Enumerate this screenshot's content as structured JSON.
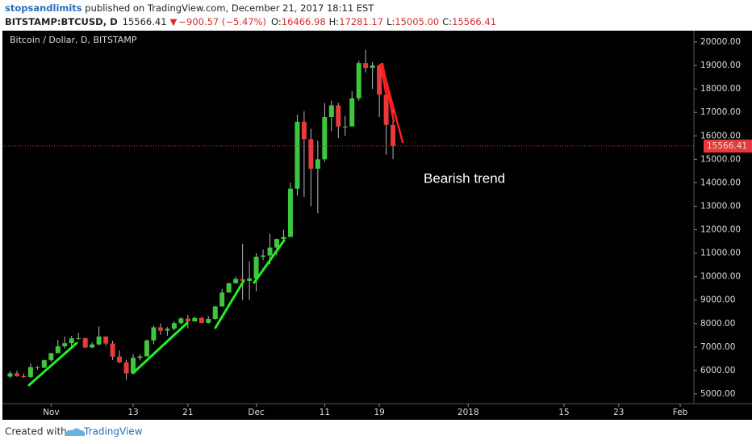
{
  "header": {
    "author": "stopsandlimits",
    "published": " published on TradingView.com, December 21, 2017 18:11 EST",
    "symbol": "BITSTAMP:BTCUSD, D",
    "last": "15566.41",
    "arrow": "▼",
    "change": "−900.57 (−5.47%)",
    "ohlc": [
      {
        "label": "O:",
        "value": "16466.98"
      },
      {
        "label": "H:",
        "value": "17281.17"
      },
      {
        "label": "L:",
        "value": "15005.00"
      },
      {
        "label": "C:",
        "value": "15566.41"
      }
    ]
  },
  "chart_data": {
    "type": "candlestick",
    "title": "Bitcoin / Dollar, D, BITSTAMP",
    "annotation": "Bearish trend",
    "up_color": "#3ec63e",
    "down_color": "#e83a3a",
    "wick_color": "#b8b8b8",
    "last_color": "#e83a3a",
    "x": [
      "2017-10-26",
      "2017-10-27",
      "2017-10-28",
      "2017-10-29",
      "2017-10-30",
      "2017-10-31",
      "2017-11-01",
      "2017-11-02",
      "2017-11-03",
      "2017-11-04",
      "2017-11-05",
      "2017-11-06",
      "2017-11-07",
      "2017-11-08",
      "2017-11-09",
      "2017-11-10",
      "2017-11-11",
      "2017-11-12",
      "2017-11-13",
      "2017-11-14",
      "2017-11-15",
      "2017-11-16",
      "2017-11-17",
      "2017-11-18",
      "2017-11-19",
      "2017-11-20",
      "2017-11-21",
      "2017-11-22",
      "2017-11-23",
      "2017-11-24",
      "2017-11-25",
      "2017-11-26",
      "2017-11-27",
      "2017-11-28",
      "2017-11-29",
      "2017-11-30",
      "2017-12-01",
      "2017-12-02",
      "2017-12-03",
      "2017-12-04",
      "2017-12-05",
      "2017-12-06",
      "2017-12-07",
      "2017-12-08",
      "2017-12-09",
      "2017-12-10",
      "2017-12-11",
      "2017-12-12",
      "2017-12-13",
      "2017-12-14",
      "2017-12-15",
      "2017-12-16",
      "2017-12-17",
      "2017-12-18",
      "2017-12-19",
      "2017-12-20",
      "2017-12-21"
    ],
    "open": [
      5740,
      5880,
      5760,
      5720,
      6140,
      6120,
      6440,
      6740,
      7030,
      7160,
      7370,
      7380,
      6980,
      7110,
      7450,
      7150,
      6590,
      6350,
      5880,
      6540,
      6600,
      7280,
      7840,
      7700,
      7780,
      8020,
      8220,
      8090,
      8240,
      8030,
      8200,
      8730,
      9320,
      9720,
      9900,
      9820,
      9920,
      10850,
      10900,
      11240,
      11600,
      11690,
      13750,
      16600,
      15860,
      14600,
      15000,
      16800,
      17300,
      16400,
      16400,
      17600,
      19100,
      18900,
      19000,
      17750,
      16466.98
    ],
    "high": [
      5970,
      5990,
      5870,
      6300,
      6200,
      6460,
      6750,
      7300,
      7450,
      7480,
      7600,
      7400,
      7200,
      7880,
      7450,
      7270,
      6850,
      6460,
      6700,
      6700,
      7330,
      7900,
      8000,
      7850,
      8100,
      8270,
      8370,
      8300,
      8280,
      8320,
      8750,
      9480,
      9730,
      10000,
      11400,
      10650,
      11000,
      11150,
      11830,
      11620,
      12000,
      14000,
      16900,
      17050,
      16300,
      15800,
      17400,
      17500,
      17400,
      16850,
      17900,
      19200,
      19666,
      19150,
      19050,
      17850,
      17281.17
    ],
    "low": [
      5680,
      5730,
      5680,
      5670,
      6030,
      6100,
      6380,
      6740,
      6940,
      6990,
      7300,
      6950,
      6950,
      7070,
      7060,
      6450,
      6310,
      5600,
      5850,
      6430,
      6600,
      7120,
      7520,
      7480,
      7700,
      7950,
      7800,
      8090,
      8000,
      8000,
      8150,
      8730,
      9320,
      9700,
      9000,
      9000,
      9380,
      10700,
      10520,
      10900,
      11480,
      11690,
      13450,
      13400,
      13000,
      12700,
      14900,
      16200,
      15900,
      16000,
      16400,
      17500,
      18700,
      18000,
      16800,
      15200,
      15005
    ],
    "close": [
      5880,
      5760,
      5720,
      6140,
      6120,
      6440,
      6740,
      7030,
      7160,
      7370,
      7380,
      6980,
      7110,
      7450,
      7150,
      6590,
      6350,
      5880,
      6540,
      6600,
      7280,
      7840,
      7700,
      7780,
      8020,
      8220,
      8090,
      8240,
      8030,
      8200,
      8730,
      9320,
      9720,
      9900,
      9820,
      9920,
      10850,
      10900,
      11240,
      11600,
      11690,
      13750,
      16600,
      15860,
      14600,
      15000,
      16800,
      17300,
      16400,
      16400,
      17600,
      19100,
      18900,
      19000,
      17750,
      16467,
      15566.41
    ],
    "xlim": [
      "2017-10-25",
      "2018-02-03"
    ],
    "xticks": [
      {
        "value": "2017-11-01",
        "label": "Nov"
      },
      {
        "value": "2017-11-13",
        "label": "13"
      },
      {
        "value": "2017-11-21",
        "label": "21"
      },
      {
        "value": "2017-12-01",
        "label": "Dec"
      },
      {
        "value": "2017-12-11",
        "label": "11"
      },
      {
        "value": "2017-12-19",
        "label": "19"
      },
      {
        "value": "2018-01-01",
        "label": "2018"
      },
      {
        "value": "2018-01-15",
        "label": "15"
      },
      {
        "value": "2018-01-23",
        "label": "23"
      },
      {
        "value": "2018-02-01",
        "label": "Feb"
      }
    ],
    "ylim": [
      4587,
      20482
    ],
    "yticks": [
      {
        "value": 5000,
        "label": "5000.00"
      },
      {
        "value": 6000,
        "label": "6000.00"
      },
      {
        "value": 7000,
        "label": "7000.00"
      },
      {
        "value": 8000,
        "label": "8000.00"
      },
      {
        "value": 9000,
        "label": "9000.00"
      },
      {
        "value": 10000,
        "label": "10000.00"
      },
      {
        "value": 11000,
        "label": "11000.00"
      },
      {
        "value": 12000,
        "label": "12000.00"
      },
      {
        "value": 13000,
        "label": "13000.00"
      },
      {
        "value": 14000,
        "label": "14000.00"
      },
      {
        "value": 15000,
        "label": "15000.00"
      },
      {
        "value": 16000,
        "label": "16000.00"
      },
      {
        "value": 17000,
        "label": "17000.00"
      },
      {
        "value": 18000,
        "label": "18000.00"
      },
      {
        "value": 19000,
        "label": "19000.00"
      },
      {
        "value": 20000,
        "label": "20000.00"
      }
    ]
  },
  "footer": {
    "created": "Created with",
    "brand": "TradingView"
  }
}
